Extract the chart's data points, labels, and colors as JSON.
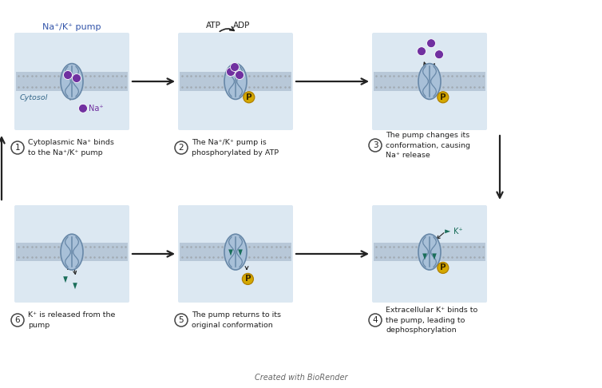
{
  "bg_color": "#ffffff",
  "panel_bg": "#dce8f2",
  "membrane_dot_color": "#a0a8b0",
  "membrane_band_color": "#b8c8d8",
  "protein_fill": "#a8c0d8",
  "protein_edge": "#6888a8",
  "protein_inner": "#8aaac8",
  "na_color": "#7030a0",
  "k_color": "#1a6e5a",
  "p_fill": "#d4a800",
  "p_edge": "#b08000",
  "arrow_color": "#222222",
  "title_color": "#3355aa",
  "cytosol_color": "#336688",
  "text_color": "#222222",
  "footer": "Created with BioRender",
  "title": "Na⁺/K⁺ pump",
  "cytosol": "Cytosol",
  "step_texts": [
    "Cytoplasmic Na⁺ binds\nto the Na⁺/K⁺ pump",
    "The Na⁺/K⁺ pump is\nphosphorylated by ATP",
    "The pump changes its\nconformation, causing\nNa⁺ release",
    "Extracellular K⁺ binds to\nthe pump, leading to\ndephosphorylation",
    "The pump returns to its\noriginal conformation",
    "K⁺ is released from the\npump"
  ],
  "fig_w": 7.54,
  "fig_h": 4.86,
  "dpi": 100
}
